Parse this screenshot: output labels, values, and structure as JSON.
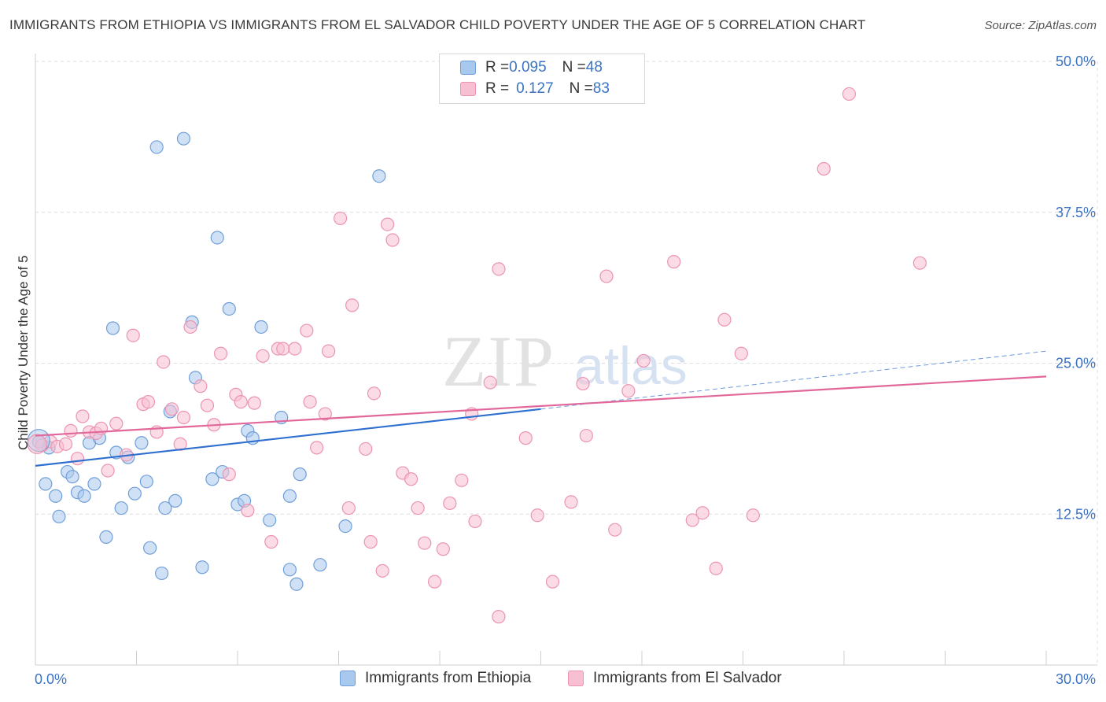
{
  "title": "IMMIGRANTS FROM ETHIOPIA VS IMMIGRANTS FROM EL SALVADOR CHILD POVERTY UNDER THE AGE OF 5 CORRELATION CHART",
  "source": "Source: ZipAtlas.com",
  "watermark": {
    "zip": "ZIP",
    "atlas": "atlas"
  },
  "legend_top": {
    "rows": [
      {
        "r_label": "R = ",
        "r_value": "0.095",
        "n_label": "N = ",
        "n_value": "48"
      },
      {
        "r_label": "R = ",
        "r_value": "0.127",
        "n_label": "N = ",
        "n_value": "83"
      }
    ]
  },
  "legend_bottom": [
    "Immigrants from Ethiopia",
    "Immigrants from El Salvador"
  ],
  "colors": {
    "ethiopia_fill": "#a9c8ee",
    "ethiopia_stroke": "#6f9fd9",
    "ethiopia_line": "#2f6fcf",
    "salvador_fill": "#f7bfd1",
    "salvador_stroke": "#eb94b2",
    "salvador_line": "#e2679a",
    "tick_label": "#3b73c4",
    "grid": "#dcdcdc"
  },
  "chart_data": {
    "type": "scatter",
    "title": "IMMIGRANTS FROM ETHIOPIA VS IMMIGRANTS FROM EL SALVADOR CHILD POVERTY UNDER THE AGE OF 5 CORRELATION CHART",
    "xlabel": "",
    "ylabel": "Child Poverty Under the Age of 5",
    "xlim": [
      0,
      30
    ],
    "ylim": [
      0,
      50
    ],
    "x_tick_labels": [
      "0.0%",
      "30.0%"
    ],
    "y_ticks": [
      12.5,
      25.0,
      37.5,
      50.0
    ],
    "y_tick_labels": [
      "12.5%",
      "25.0%",
      "37.5%",
      "50.0%"
    ],
    "grid": true,
    "legend_position": "top-center",
    "series": [
      {
        "name": "Immigrants from Ethiopia",
        "r": 0.095,
        "n": 48,
        "trend": {
          "x": [
            0,
            15
          ],
          "y": [
            16.5,
            21.2
          ]
        },
        "trend_extension": {
          "x": [
            15,
            30
          ],
          "y": [
            21.2,
            26.0
          ]
        },
        "points": [
          [
            0.1,
            18.5
          ],
          [
            0.3,
            15.0
          ],
          [
            0.4,
            18.0
          ],
          [
            0.6,
            14.0
          ],
          [
            0.7,
            12.3
          ],
          [
            0.95,
            16.0
          ],
          [
            1.1,
            15.6
          ],
          [
            1.25,
            14.3
          ],
          [
            1.45,
            14.0
          ],
          [
            1.6,
            18.4
          ],
          [
            1.75,
            15.0
          ],
          [
            1.9,
            18.8
          ],
          [
            2.1,
            10.6
          ],
          [
            2.3,
            27.9
          ],
          [
            2.4,
            17.6
          ],
          [
            2.55,
            13.0
          ],
          [
            2.75,
            17.2
          ],
          [
            2.95,
            14.2
          ],
          [
            3.15,
            18.4
          ],
          [
            3.3,
            15.2
          ],
          [
            3.4,
            9.7
          ],
          [
            3.6,
            42.9
          ],
          [
            3.75,
            7.6
          ],
          [
            3.85,
            13.0
          ],
          [
            4.0,
            21.0
          ],
          [
            4.15,
            13.6
          ],
          [
            4.4,
            43.6
          ],
          [
            4.65,
            28.4
          ],
          [
            4.75,
            23.8
          ],
          [
            4.95,
            8.1
          ],
          [
            5.25,
            15.4
          ],
          [
            5.4,
            35.4
          ],
          [
            5.55,
            16.0
          ],
          [
            5.75,
            29.5
          ],
          [
            6.0,
            13.3
          ],
          [
            6.2,
            13.6
          ],
          [
            6.3,
            19.4
          ],
          [
            6.45,
            18.8
          ],
          [
            6.7,
            28.0
          ],
          [
            6.95,
            12.0
          ],
          [
            7.3,
            20.5
          ],
          [
            7.55,
            14.0
          ],
          [
            7.55,
            7.9
          ],
          [
            7.75,
            6.7
          ],
          [
            7.85,
            15.8
          ],
          [
            8.45,
            8.3
          ],
          [
            9.2,
            11.5
          ],
          [
            10.2,
            40.5
          ]
        ]
      },
      {
        "name": "Immigrants from El Salvador",
        "r": 0.127,
        "n": 83,
        "trend": {
          "x": [
            0,
            30
          ],
          "y": [
            19.0,
            23.9
          ]
        },
        "points": [
          [
            0.2,
            18.2
          ],
          [
            0.45,
            18.5
          ],
          [
            0.65,
            18.1
          ],
          [
            0.9,
            18.3
          ],
          [
            1.05,
            19.4
          ],
          [
            1.25,
            17.1
          ],
          [
            1.4,
            20.6
          ],
          [
            1.6,
            19.3
          ],
          [
            1.8,
            19.2
          ],
          [
            1.95,
            19.6
          ],
          [
            2.15,
            16.1
          ],
          [
            2.4,
            20.0
          ],
          [
            2.7,
            17.4
          ],
          [
            2.9,
            27.3
          ],
          [
            3.2,
            21.6
          ],
          [
            3.35,
            21.8
          ],
          [
            3.6,
            19.3
          ],
          [
            3.8,
            25.1
          ],
          [
            4.05,
            21.2
          ],
          [
            4.3,
            18.3
          ],
          [
            4.4,
            20.5
          ],
          [
            4.6,
            28.0
          ],
          [
            4.9,
            23.1
          ],
          [
            5.1,
            21.5
          ],
          [
            5.3,
            19.9
          ],
          [
            5.5,
            25.8
          ],
          [
            5.75,
            15.8
          ],
          [
            5.95,
            22.4
          ],
          [
            6.1,
            21.8
          ],
          [
            6.3,
            12.8
          ],
          [
            6.5,
            21.7
          ],
          [
            6.75,
            25.6
          ],
          [
            7.0,
            10.2
          ],
          [
            7.2,
            26.2
          ],
          [
            7.35,
            26.2
          ],
          [
            7.7,
            26.2
          ],
          [
            8.05,
            27.7
          ],
          [
            8.15,
            21.8
          ],
          [
            8.35,
            18.0
          ],
          [
            8.6,
            20.8
          ],
          [
            8.7,
            26.0
          ],
          [
            9.05,
            37.0
          ],
          [
            9.3,
            13.0
          ],
          [
            9.4,
            29.8
          ],
          [
            9.8,
            17.9
          ],
          [
            9.95,
            10.2
          ],
          [
            10.05,
            22.5
          ],
          [
            10.3,
            7.8
          ],
          [
            10.45,
            36.5
          ],
          [
            10.6,
            35.2
          ],
          [
            10.9,
            15.9
          ],
          [
            11.15,
            15.4
          ],
          [
            11.35,
            13.0
          ],
          [
            11.55,
            10.1
          ],
          [
            11.85,
            6.9
          ],
          [
            12.1,
            9.6
          ],
          [
            12.3,
            13.4
          ],
          [
            12.65,
            15.3
          ],
          [
            12.95,
            20.8
          ],
          [
            13.05,
            11.9
          ],
          [
            13.5,
            23.4
          ],
          [
            13.75,
            32.8
          ],
          [
            13.75,
            4.0
          ],
          [
            14.55,
            18.8
          ],
          [
            14.9,
            12.4
          ],
          [
            15.35,
            6.9
          ],
          [
            15.9,
            13.5
          ],
          [
            16.25,
            23.3
          ],
          [
            16.35,
            19.0
          ],
          [
            16.95,
            32.2
          ],
          [
            17.2,
            11.2
          ],
          [
            17.6,
            22.7
          ],
          [
            18.05,
            25.2
          ],
          [
            18.95,
            33.4
          ],
          [
            19.5,
            12.0
          ],
          [
            19.8,
            12.6
          ],
          [
            20.2,
            8.0
          ],
          [
            20.45,
            28.6
          ],
          [
            20.95,
            25.8
          ],
          [
            21.3,
            12.4
          ],
          [
            23.4,
            41.1
          ],
          [
            24.15,
            47.3
          ],
          [
            26.25,
            33.3
          ]
        ]
      }
    ]
  }
}
